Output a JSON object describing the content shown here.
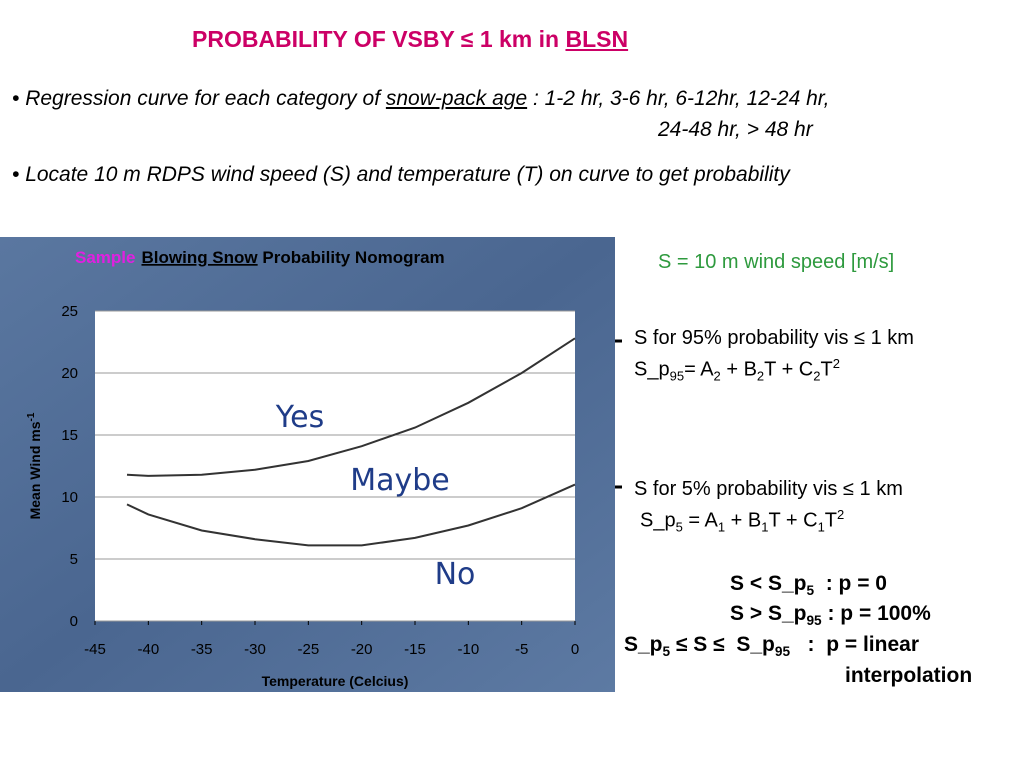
{
  "title": [
    "PROBABILITY OF VSBY ≤ 1 km in ",
    "BLSN"
  ],
  "bullets": [
    [
      "Regression curve for each category of ",
      "snow-pack age",
      " : 1-2 hr, 3-6 hr, 6-12hr, 12-24 hr,",
      "24-48 hr, > 48 hr"
    ],
    [
      "Locate 10 m RDPS wind speed (S) and temperature (T) on curve to get probability"
    ]
  ],
  "s_definition": "S = 10 m wind speed [m/s]",
  "label_95": "S for 95% probability vis ≤ 1 km",
  "formula_95": [
    "S_p",
    "95",
    "= A",
    "2",
    " + B",
    "2",
    "T + C",
    "2",
    "T",
    "2"
  ],
  "label_5": "S for 5% probability vis ≤ 1 km",
  "formula_5": [
    "S_p",
    "5",
    " = A",
    "1",
    " + B",
    "1",
    "T + C",
    "1",
    "T",
    "2"
  ],
  "rules": [
    [
      "S < S_p",
      "5",
      "  : p = 0"
    ],
    [
      "S > S_p",
      "95",
      " : p = 100%"
    ],
    [
      "S_p",
      "5",
      " ≤ S ≤  S_p",
      "95",
      "   :  p = linear"
    ]
  ],
  "rules_continued": "interpolation",
  "chart_data": {
    "type": "line",
    "title": [
      "Sample",
      "Blowing Snow",
      " Probability Nomogram"
    ],
    "x_label": "Temperature (Celcius)",
    "y_label": [
      "Mean Wind ms",
      "-1"
    ],
    "x": [
      -42,
      -40,
      -35,
      -30,
      -25,
      -20,
      -15,
      -10,
      -5,
      0
    ],
    "series": [
      {
        "color": "#333333",
        "values": [
          11.8,
          11.7,
          11.8,
          12.2,
          12.9,
          14.1,
          15.6,
          17.6,
          20.0,
          22.8
        ]
      },
      {
        "color": "#333333",
        "values": [
          9.4,
          8.6,
          7.3,
          6.6,
          6.1,
          6.1,
          6.7,
          7.7,
          9.1,
          11.0
        ]
      }
    ],
    "annotations": [
      "Yes",
      "Maybe",
      "No"
    ],
    "xlim": [
      -45,
      0
    ],
    "xticks": [
      -45,
      -40,
      -35,
      -30,
      -25,
      -20,
      -15,
      -10,
      -5,
      0
    ],
    "ylim": [
      0,
      25
    ],
    "yticks": [
      0,
      5,
      10,
      15,
      20,
      25
    ],
    "grid": true
  }
}
